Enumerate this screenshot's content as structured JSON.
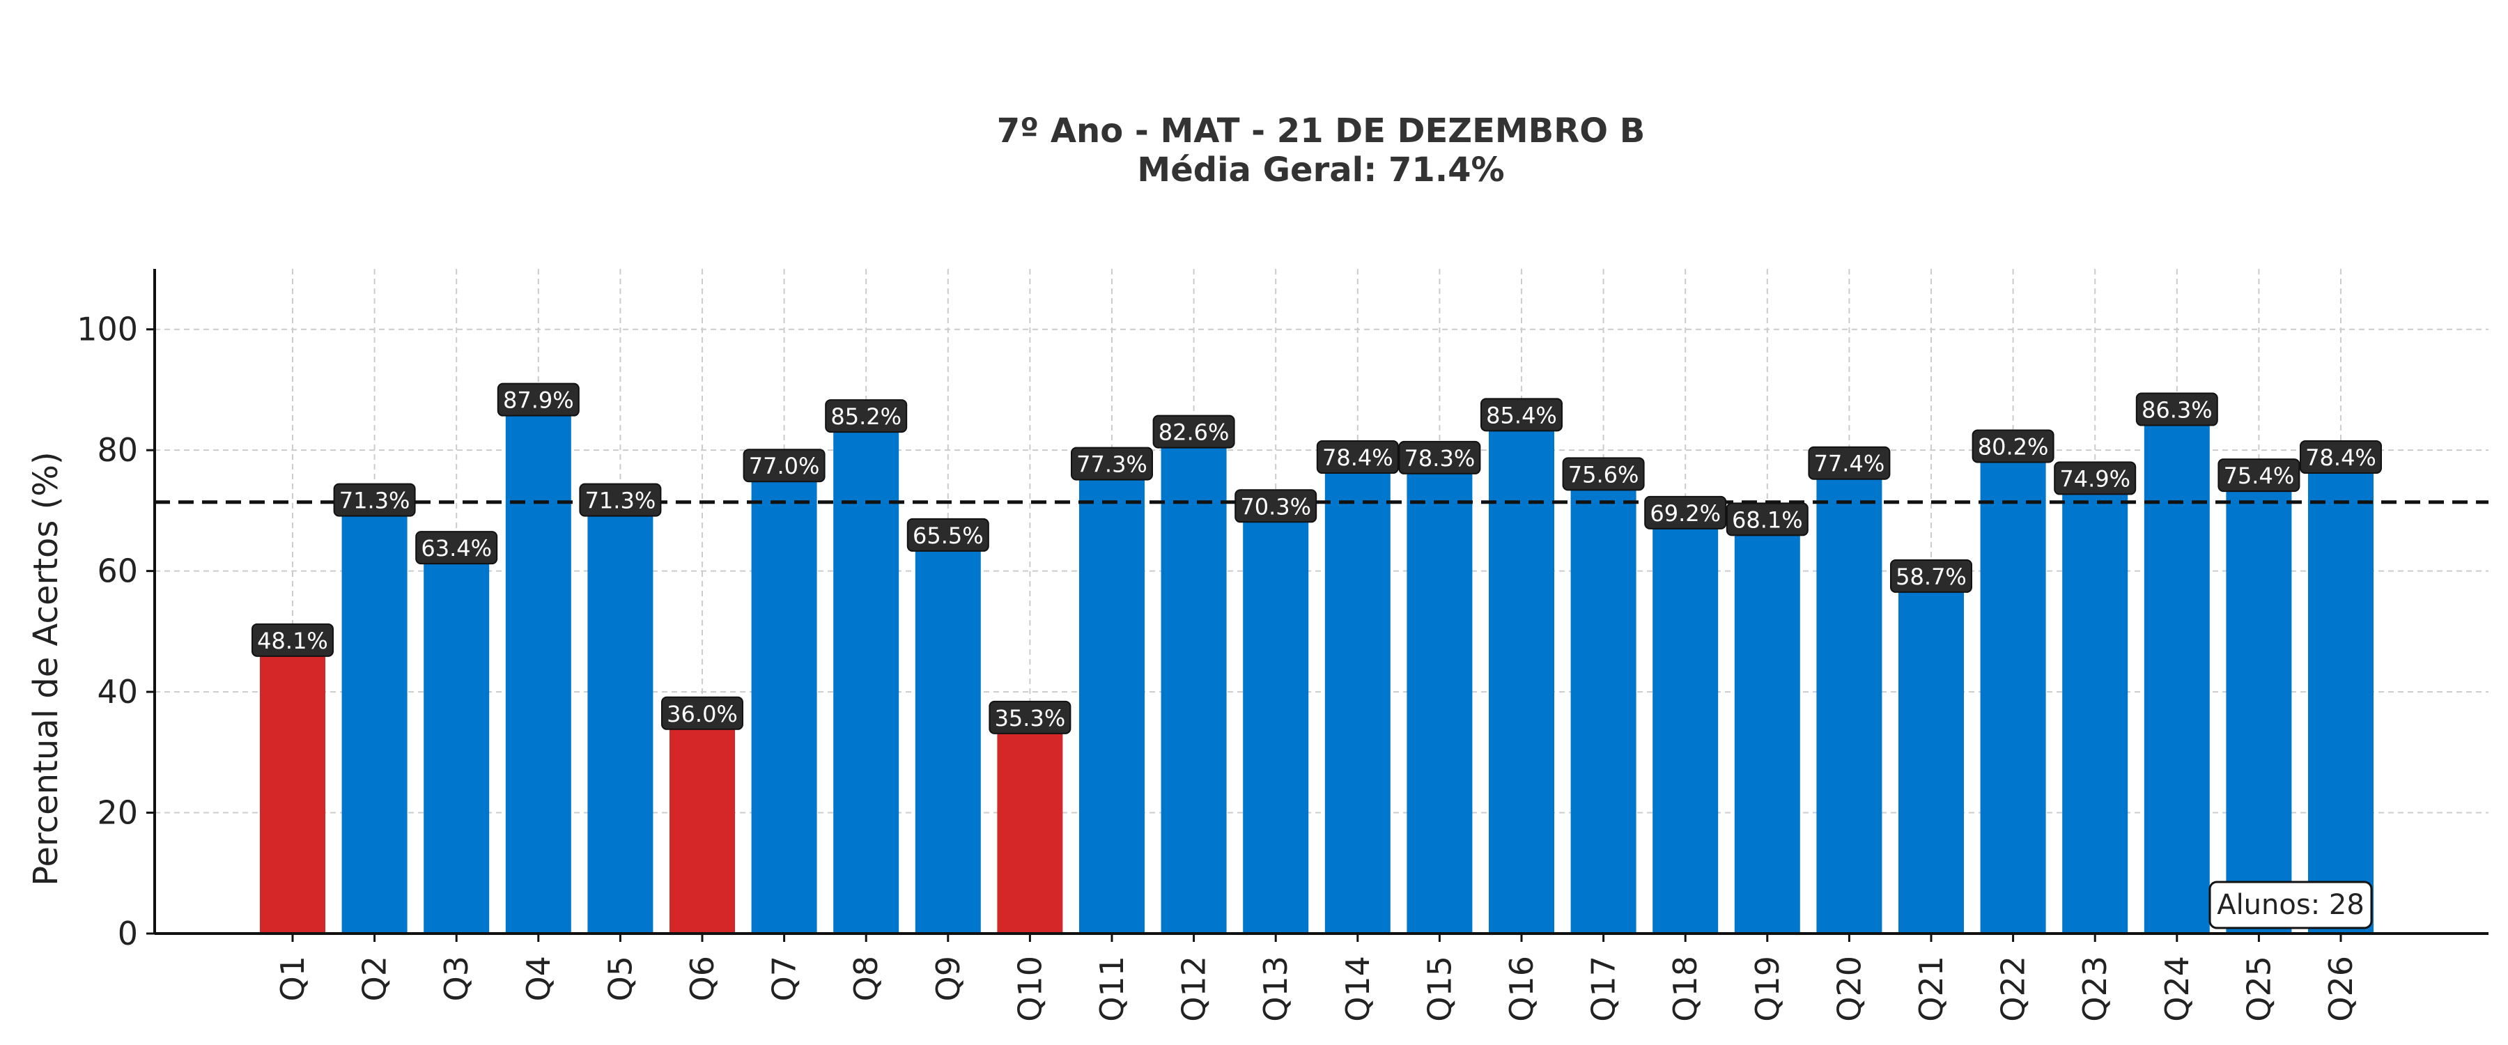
{
  "chart_data": {
    "type": "bar",
    "title": "7º Ano - MAT - 21 DE DEZEMBRO B",
    "subtitle": "Média Geral: 71.4%",
    "xlabel": "",
    "ylabel": "Percentual de Acertos (%)",
    "ylim": [
      0,
      110
    ],
    "yticks": [
      "0",
      "20",
      "40",
      "60",
      "80",
      "100"
    ],
    "grid": true,
    "categories": [
      "Q1",
      "Q2",
      "Q3",
      "Q4",
      "Q5",
      "Q6",
      "Q7",
      "Q8",
      "Q9",
      "Q10",
      "Q11",
      "Q12",
      "Q13",
      "Q14",
      "Q15",
      "Q16",
      "Q17",
      "Q18",
      "Q19",
      "Q20",
      "Q21",
      "Q22",
      "Q23",
      "Q24",
      "Q25",
      "Q26"
    ],
    "values": [
      48.1,
      71.3,
      63.4,
      87.9,
      71.3,
      36.0,
      77.0,
      85.2,
      65.5,
      35.3,
      77.3,
      82.6,
      70.3,
      78.4,
      78.3,
      85.4,
      75.6,
      69.2,
      68.1,
      77.4,
      58.7,
      80.2,
      74.9,
      86.3,
      75.4,
      78.4
    ],
    "value_labels": [
      "48.1%",
      "71.3%",
      "63.4%",
      "87.9%",
      "71.3%",
      "36.0%",
      "77.0%",
      "85.2%",
      "65.5%",
      "35.3%",
      "77.3%",
      "82.6%",
      "70.3%",
      "78.4%",
      "78.3%",
      "85.4%",
      "75.6%",
      "69.2%",
      "68.1%",
      "77.4%",
      "58.7%",
      "80.2%",
      "74.9%",
      "86.3%",
      "75.4%",
      "78.4%"
    ],
    "mean_line": 71.4,
    "low_threshold": 50,
    "colors": {
      "bar": "#0077cc",
      "bar_low": "#d62728",
      "label_bg": "#2b2b2b",
      "mean_line": "#111111",
      "grid": "#cccccc"
    },
    "annotation": "Alunos: 28"
  }
}
